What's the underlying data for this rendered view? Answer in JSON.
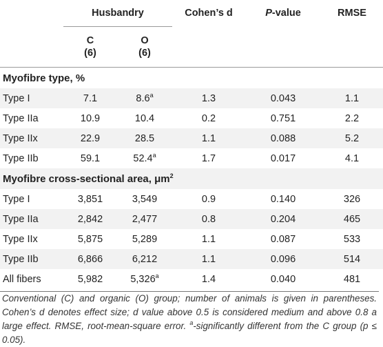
{
  "header": {
    "husbandry": "Husbandry",
    "cohens_d": "Cohen’s d",
    "p_value_p": "P",
    "p_value_rest": "-value",
    "rmse": "RMSE",
    "group_c": "C",
    "group_o": "O",
    "n_c": "(6)",
    "n_o": "(6)"
  },
  "sections": [
    {
      "title": "Myofibre type, %",
      "rows": [
        {
          "label": "Type I",
          "c": "7.1",
          "o": "8.6",
          "o_sup": "a",
          "d": "1.3",
          "p": "0.043",
          "rmse": "1.1"
        },
        {
          "label": "Type IIa",
          "c": "10.9",
          "o": "10.4",
          "o_sup": "",
          "d": "0.2",
          "p": "0.751",
          "rmse": "2.2"
        },
        {
          "label": "Type IIx",
          "c": "22.9",
          "o": "28.5",
          "o_sup": "",
          "d": "1.1",
          "p": "0.088",
          "rmse": "5.2"
        },
        {
          "label": "Type IIb",
          "c": "59.1",
          "o": "52.4",
          "o_sup": "a",
          "d": "1.7",
          "p": "0.017",
          "rmse": "4.1"
        }
      ]
    },
    {
      "title": "Myofibre cross-sectional area, μm",
      "title_sup": "2",
      "rows": [
        {
          "label": "Type I",
          "c": "3,851",
          "o": "3,549",
          "o_sup": "",
          "d": "0.9",
          "p": "0.140",
          "rmse": "326"
        },
        {
          "label": "Type IIa",
          "c": "2,842",
          "o": "2,477",
          "o_sup": "",
          "d": "0.8",
          "p": "0.204",
          "rmse": "465"
        },
        {
          "label": "Type IIx",
          "c": "5,875",
          "o": "5,289",
          "o_sup": "",
          "d": "1.1",
          "p": "0.087",
          "rmse": "533"
        },
        {
          "label": "Type IIb",
          "c": "6,866",
          "o": "6,212",
          "o_sup": "",
          "d": "1.1",
          "p": "0.096",
          "rmse": "514"
        },
        {
          "label": "All fibers",
          "c": "5,982",
          "o": "5,326",
          "o_sup": "a",
          "d": "1.4",
          "p": "0.040",
          "rmse": "481"
        }
      ]
    }
  ],
  "footnote": {
    "part1": "Conventional (C) and organic (O) group; number of animals is given in parentheses. Cohen’s d denotes effect size; d value above 0.5 is considered medium and above 0.8 a large effect. RMSE, root-mean-square error. ",
    "sup": "a",
    "part2": "-significantly different from the C group (p ≤ 0.05)."
  }
}
